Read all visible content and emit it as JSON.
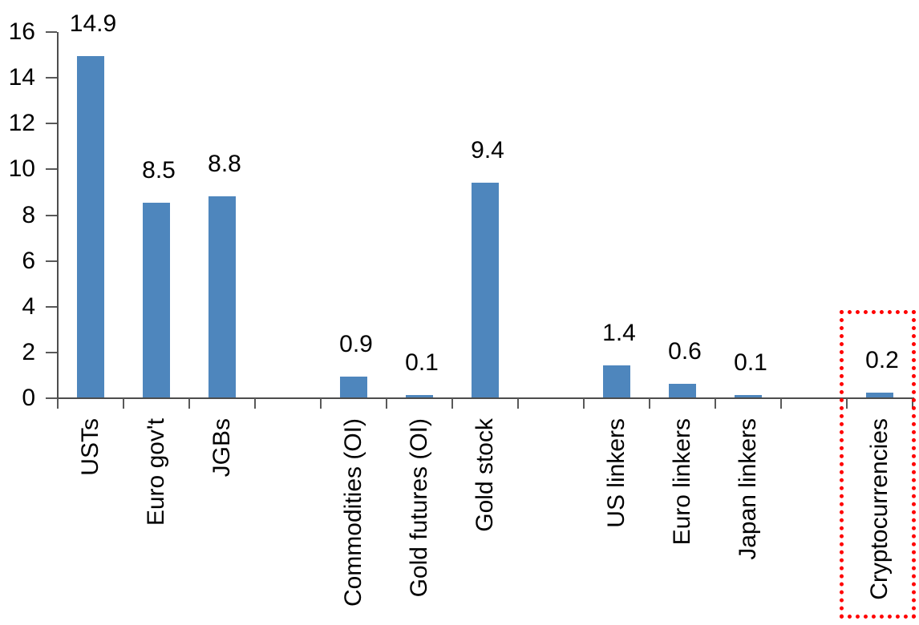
{
  "chart_data": {
    "type": "bar",
    "title": "",
    "xlabel": "",
    "ylabel": "",
    "categories": [
      "USTs",
      "Euro gov't",
      "JGBs",
      "Commodities (OI)",
      "Gold futures (OI)",
      "Gold stock",
      "US linkers",
      "Euro linkers",
      "Japan linkers",
      "Cryptocurrencies"
    ],
    "values": [
      14.9,
      8.5,
      8.8,
      0.9,
      0.1,
      9.4,
      1.4,
      0.6,
      0.1,
      0.2
    ],
    "data_labels": [
      "14.9",
      "8.5",
      "8.8",
      "0.9",
      "0.1",
      "9.4",
      "1.4",
      "0.6",
      "0.1",
      "0.2"
    ],
    "slots": [
      0,
      1,
      2,
      4,
      5,
      6,
      8,
      9,
      10,
      12
    ],
    "total_slots": 13,
    "ylim": [
      0,
      16
    ],
    "ytick_step": 2,
    "ytick_labels": [
      "0",
      "2",
      "4",
      "6",
      "8",
      "10",
      "12",
      "14",
      "16"
    ],
    "grid": false,
    "legend": "none",
    "category_label_rotation_deg": 90,
    "colors": {
      "bar": "#4E86BD",
      "axis": "#4d4d4d",
      "tick": "#595959",
      "text": "#000000",
      "highlight": "#FF0000"
    },
    "highlight": {
      "category": "Cryptocurrencies",
      "slot": 12,
      "style": "red-dotted-box"
    }
  }
}
